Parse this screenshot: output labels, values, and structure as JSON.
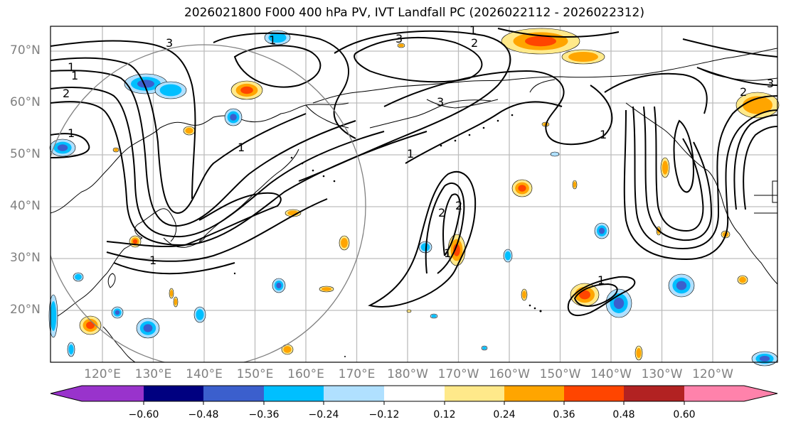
{
  "title": "2026021800 F000 400 hPa PV, IVT Landfall PC (2026022112 - 2026022312)",
  "chart_data": {
    "type": "map",
    "title": "2026021800 F000 400 hPa PV, IVT Landfall PC (2026022112 - 2026022312)",
    "lat_ticks": [
      "70°N",
      "60°N",
      "50°N",
      "40°N",
      "30°N",
      "20°N"
    ],
    "lat_values": [
      70,
      60,
      50,
      40,
      30,
      20
    ],
    "lon_ticks": [
      "120°E",
      "130°E",
      "140°E",
      "150°E",
      "160°E",
      "170°E",
      "180°W",
      "170°W",
      "160°W",
      "150°W",
      "140°W",
      "130°W",
      "120°W"
    ],
    "lon_values": [
      120,
      130,
      140,
      150,
      160,
      170,
      180,
      190,
      200,
      210,
      220,
      230,
      240
    ],
    "lon_range": [
      110,
      250
    ],
    "lat_range": [
      10,
      75
    ],
    "grid": true,
    "contour_labels": [
      "1",
      "2",
      "3"
    ],
    "colorbar": {
      "levels": [
        -0.6,
        -0.48,
        -0.36,
        -0.24,
        -0.12,
        0.12,
        0.24,
        0.36,
        0.48,
        0.6
      ],
      "tick_labels": [
        "−0.60",
        "−0.48",
        "−0.36",
        "−0.24",
        "−0.12",
        "0.12",
        "0.24",
        "0.36",
        "0.48",
        "0.60"
      ],
      "colors": [
        "#9933cc",
        "#000080",
        "#3b5fcd",
        "#00bfff",
        "#b0e0ff",
        "#ffffff",
        "#ffe98a",
        "#ffa500",
        "#ff4500",
        "#b22222",
        "#ff82ab"
      ],
      "extend": "both"
    }
  }
}
